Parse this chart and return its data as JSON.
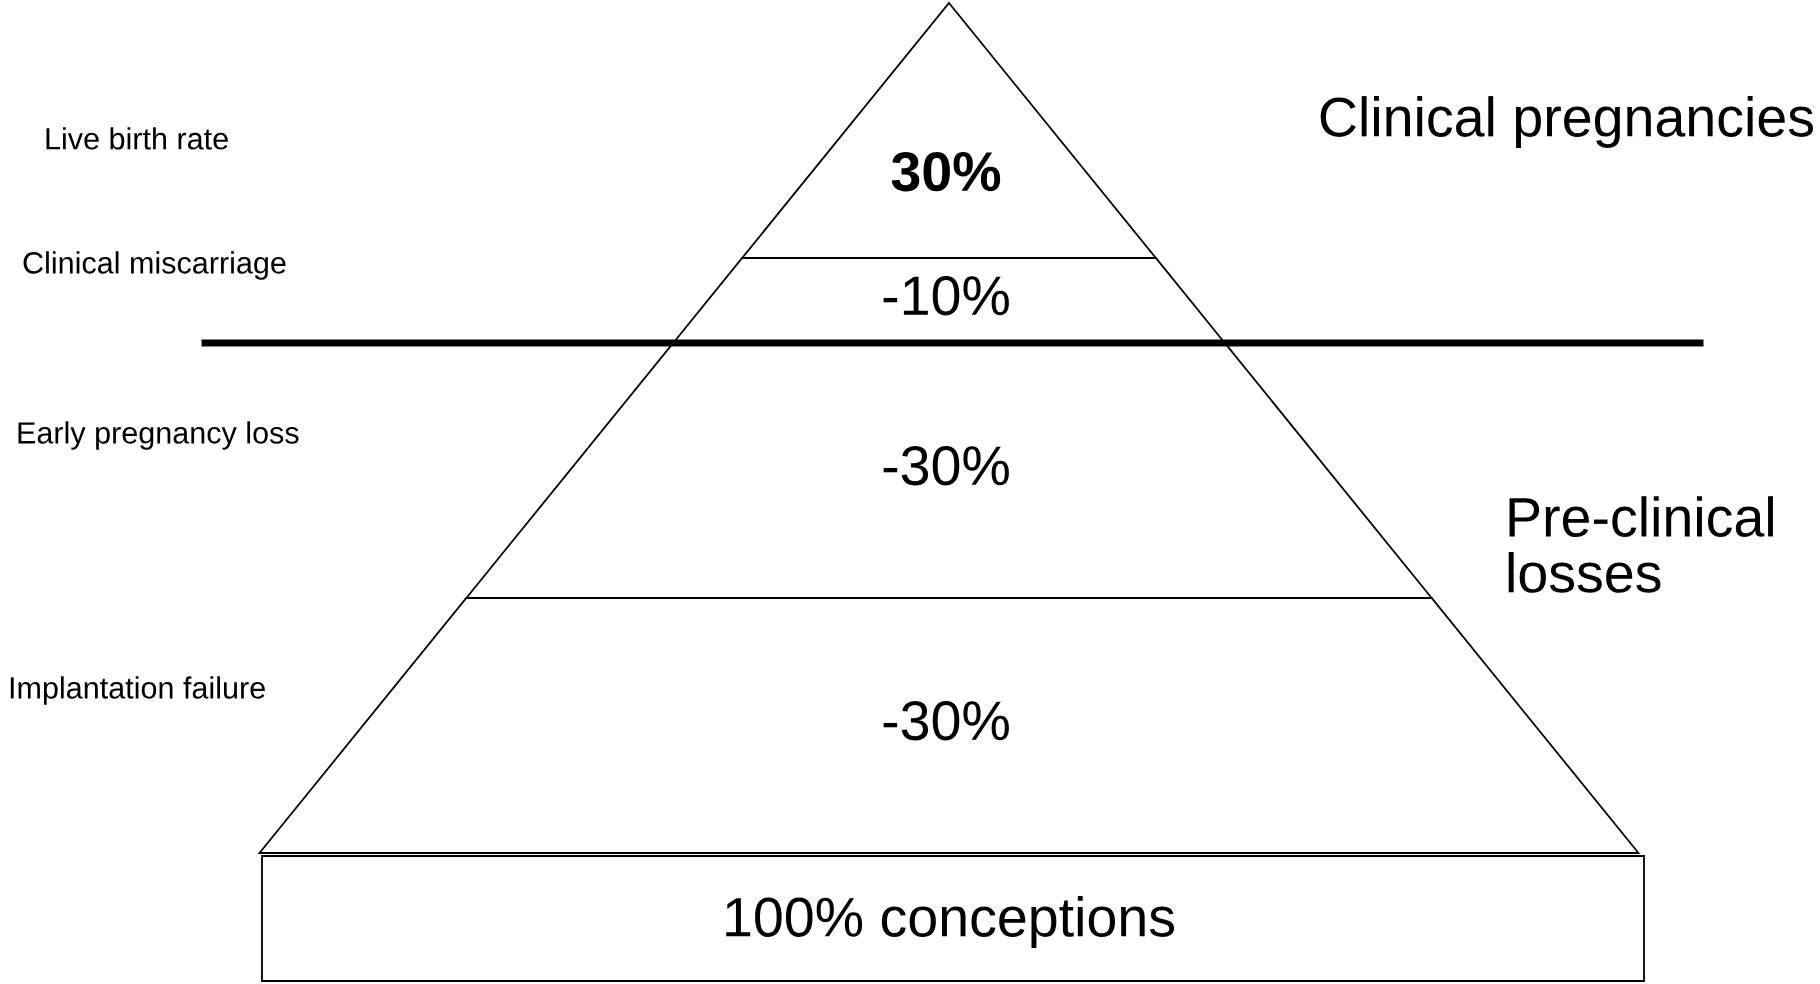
{
  "chart_data": {
    "type": "other",
    "categories": [
      "Live birth rate",
      "Clinical miscarriage",
      "Early pregnancy loss",
      "Implantation failure"
    ],
    "values": [
      30,
      -10,
      -30,
      -30
    ],
    "value_labels": [
      "30%",
      "-10%",
      "-30%",
      "-30%"
    ],
    "annotations": [
      "Clinical pregnancies",
      "Pre-clinical\nlosses",
      "100% conceptions"
    ]
  }
}
